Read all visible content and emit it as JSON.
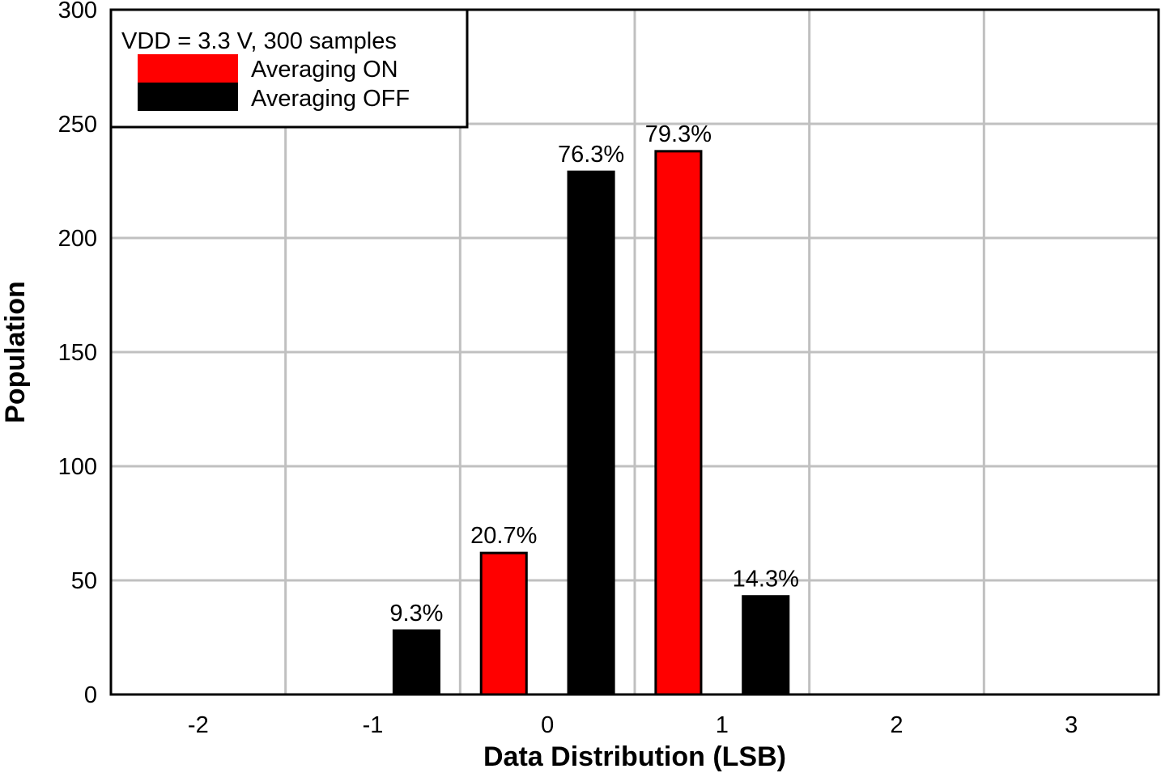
{
  "chart_data": {
    "type": "bar",
    "title": "",
    "xlabel": "Data Distribution (LSB)",
    "ylabel": "Population",
    "xlim": [
      -2.5,
      3.5
    ],
    "ylim": [
      0,
      300
    ],
    "x_ticks": [
      -2,
      -1,
      0,
      1,
      2,
      3
    ],
    "x_tick_labels": [
      "-2",
      "-1",
      "0",
      "1",
      "2",
      "3"
    ],
    "x_grid": [
      -1.5,
      -0.5,
      0.5,
      1.5,
      2.5
    ],
    "y_ticks": [
      0,
      50,
      100,
      150,
      200,
      250,
      300
    ],
    "y_tick_labels": [
      "0",
      "50",
      "100",
      "150",
      "200",
      "250",
      "300"
    ],
    "grid": true,
    "legend": {
      "placement": "top-left",
      "title": "VDD = 3.3 V, 300 samples"
    },
    "series": [
      {
        "name": "Averaging ON",
        "color": "#ff0000",
        "x": [
          -0.25,
          0.75
        ],
        "values": [
          62,
          238
        ],
        "labels": [
          "20.7%",
          "79.3%"
        ]
      },
      {
        "name": "Averaging OFF",
        "color": "#000000",
        "x": [
          -0.75,
          0.25,
          1.25
        ],
        "values": [
          28,
          229,
          43
        ],
        "labels": [
          "9.3%",
          "76.3%",
          "14.3%"
        ]
      }
    ]
  }
}
